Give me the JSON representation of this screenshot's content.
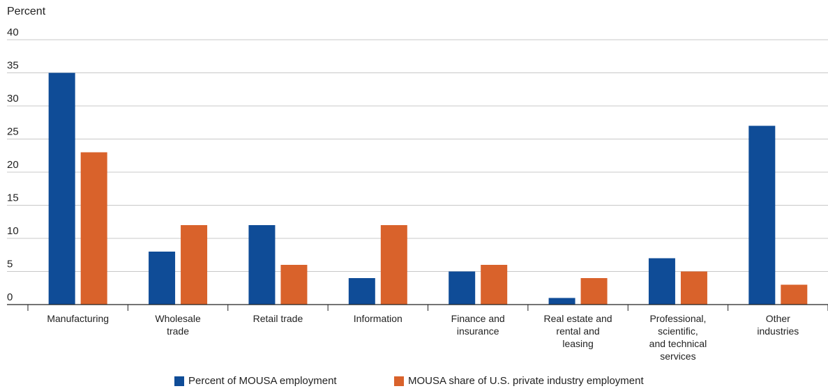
{
  "chart_data": {
    "type": "bar",
    "ylabel": "Percent",
    "ylim": [
      0,
      40
    ],
    "yticks": [
      0,
      5,
      10,
      15,
      20,
      25,
      30,
      35,
      40
    ],
    "grid": true,
    "legend_position": "bottom",
    "categories": [
      "Manufacturing",
      "Wholesale\ntrade",
      "Retail trade",
      "Information",
      "Finance and\ninsurance",
      "Real estate and\nrental and\nleasing",
      "Professional,\nscientific,\nand technical\nservices",
      "Other\nindustries"
    ],
    "series": [
      {
        "name": "Percent of MOUSA employment",
        "color": "#0f4c97",
        "values": [
          35,
          8,
          12,
          4,
          5,
          1,
          7,
          27
        ]
      },
      {
        "name": "MOUSA share of U.S. private industry employment",
        "color": "#d9622b",
        "values": [
          23,
          12,
          6,
          12,
          6,
          4,
          5,
          3
        ]
      }
    ]
  }
}
